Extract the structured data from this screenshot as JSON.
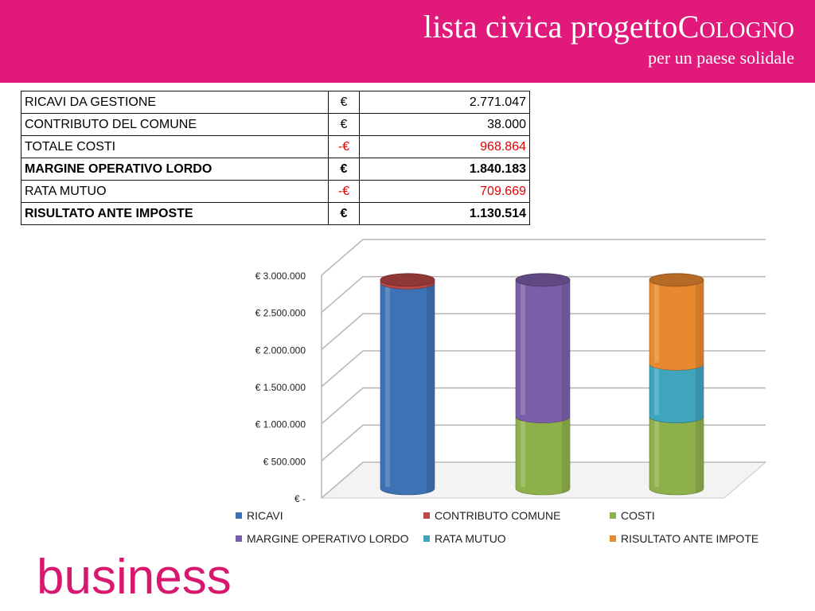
{
  "brand": {
    "title_prefix": "lista civica progetto",
    "title_suffix": "Cologno",
    "subtitle": "per un paese solidale"
  },
  "table": {
    "rows": [
      {
        "label": "RICAVI DA GESTIONE",
        "currency": "€",
        "amount": "2.771.047",
        "bold": false,
        "negative": false
      },
      {
        "label": "CONTRIBUTO DEL COMUNE",
        "currency": "€",
        "amount": "38.000",
        "bold": false,
        "negative": false
      },
      {
        "label": "TOTALE COSTI",
        "currency": "-€",
        "amount": "968.864",
        "bold": false,
        "negative": true
      },
      {
        "label": "MARGINE OPERATIVO LORDO",
        "currency": "€",
        "amount": "1.840.183",
        "bold": true,
        "negative": false
      },
      {
        "label": "RATA MUTUO",
        "currency": "-€",
        "amount": "709.669",
        "bold": false,
        "negative": true
      },
      {
        "label": "RISULTATO ANTE IMPOSTE",
        "currency": "€",
        "amount": "1.130.514",
        "bold": true,
        "negative": false
      }
    ]
  },
  "chart_data": {
    "type": "bar",
    "stacked": true,
    "style": "3d-cylinder",
    "categories": [
      "",
      "",
      ""
    ],
    "ylim": [
      0,
      3000000
    ],
    "yticks": [
      {
        "value": 0,
        "label": "€ -"
      },
      {
        "value": 500000,
        "label": "€ 500.000"
      },
      {
        "value": 1000000,
        "label": "€ 1.000.000"
      },
      {
        "value": 1500000,
        "label": "€ 1.500.000"
      },
      {
        "value": 2000000,
        "label": "€ 2.000.000"
      },
      {
        "value": 2500000,
        "label": "€ 2.500.000"
      },
      {
        "value": 3000000,
        "label": "€ 3.000.000"
      }
    ],
    "grid": true,
    "legend_position": "bottom",
    "series": [
      {
        "name": "RICAVI",
        "color": "#3d72b4",
        "values": [
          2771047,
          0,
          0
        ]
      },
      {
        "name": "CONTRIBUTO COMUNE",
        "color": "#b94846",
        "values": [
          38000,
          0,
          0
        ]
      },
      {
        "name": "COSTI",
        "color": "#8db04a",
        "values": [
          0,
          968864,
          968864
        ]
      },
      {
        "name": "MARGINE OPERATIVO LORDO",
        "color": "#7b5ea8",
        "values": [
          0,
          1840183,
          0
        ]
      },
      {
        "name": "RATA MUTUO",
        "color": "#3ea5bd",
        "values": [
          0,
          0,
          709669
        ]
      },
      {
        "name": "RISULTATO ANTE IMPOTE",
        "color": "#e8892f",
        "values": [
          0,
          0,
          1130514
        ]
      }
    ]
  },
  "footer": {
    "word": "business"
  }
}
